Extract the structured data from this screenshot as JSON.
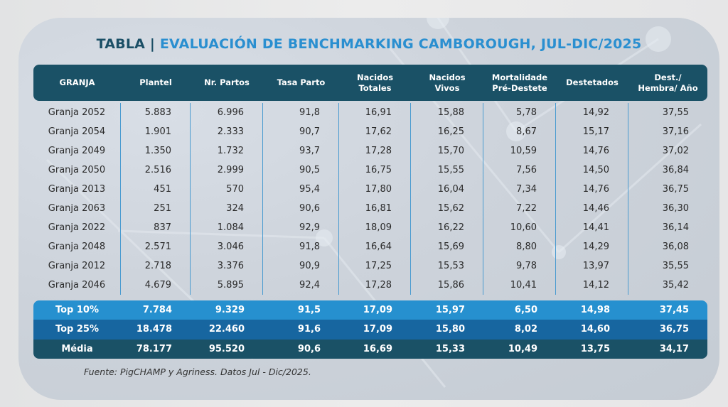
{
  "title": {
    "prefix": "TABLA",
    "separator": "|",
    "main": "EVALUACIÓN DE BENCHMARKING CAMBOROUGH, JUL-DIC/2025"
  },
  "colors": {
    "header_bg": "#1a5166",
    "title_prefix": "#1b4f66",
    "title_main": "#2a8fd0",
    "top10_bg": "#2690cf",
    "top25_bg": "#1766a0",
    "media_bg": "#1a5166",
    "divider": "#4a9bd0"
  },
  "table": {
    "columns": [
      "GRANJA",
      "Plantel",
      "Nr. Partos",
      "Tasa Parto",
      "Nacidos\nTotales",
      "Nacidos\nVivos",
      "Mortalidade\nPré-Destete",
      "Destetados",
      "Dest./\nHembra/ Año"
    ],
    "rows": [
      [
        "Granja 2052",
        "5.883",
        "6.996",
        "91,8",
        "16,91",
        "15,88",
        "5,78",
        "14,92",
        "37,55"
      ],
      [
        "Granja 2054",
        "1.901",
        "2.333",
        "90,7",
        "17,62",
        "16,25",
        "8,67",
        "15,17",
        "37,16"
      ],
      [
        "Granja 2049",
        "1.350",
        "1.732",
        "93,7",
        "17,28",
        "15,70",
        "10,59",
        "14,76",
        "37,02"
      ],
      [
        "Granja 2050",
        "2.516",
        "2.999",
        "90,5",
        "16,75",
        "15,55",
        "7,56",
        "14,50",
        "36,84"
      ],
      [
        "Granja 2013",
        "451",
        "570",
        "95,4",
        "17,80",
        "16,04",
        "7,34",
        "14,76",
        "36,75"
      ],
      [
        "Granja 2063",
        "251",
        "324",
        "90,6",
        "16,81",
        "15,62",
        "7,22",
        "14,46",
        "36,30"
      ],
      [
        "Granja 2022",
        "837",
        "1.084",
        "92,9",
        "18,09",
        "16,22",
        "10,60",
        "14,41",
        "36,14"
      ],
      [
        "Granja 2048",
        "2.571",
        "3.046",
        "91,8",
        "16,64",
        "15,69",
        "8,80",
        "14,29",
        "36,08"
      ],
      [
        "Granja 2012",
        "2.718",
        "3.376",
        "90,9",
        "17,25",
        "15,53",
        "9,78",
        "13,97",
        "35,55"
      ],
      [
        "Granja 2046",
        "4.679",
        "5.895",
        "92,4",
        "17,28",
        "15,86",
        "10,41",
        "14,12",
        "35,42"
      ]
    ],
    "summary": [
      [
        "Top 10%",
        "7.784",
        "9.329",
        "91,5",
        "17,09",
        "15,97",
        "6,50",
        "14,98",
        "37,45"
      ],
      [
        "Top 25%",
        "18.478",
        "22.460",
        "91,6",
        "17,09",
        "15,80",
        "8,02",
        "14,60",
        "36,75"
      ],
      [
        "Média",
        "78.177",
        "95.520",
        "90,6",
        "16,69",
        "15,33",
        "10,49",
        "13,75",
        "34,17"
      ]
    ]
  },
  "source": "Fuente: PigCHAMP y Agriness. Datos Jul - Dic/2025."
}
